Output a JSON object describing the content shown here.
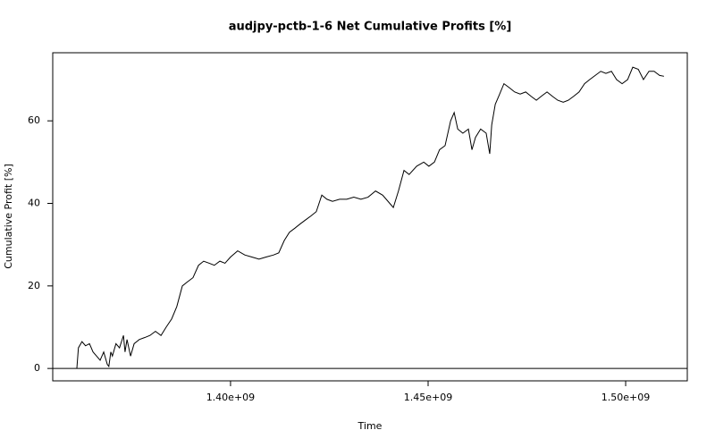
{
  "chart_data": {
    "type": "line",
    "title": "audjpy-pctb-1-6 Net Cumulative Profits [%]",
    "x_label": "Time",
    "y_label": "Cumulative Profit [%]",
    "xlim": [
      1355000000,
      1515600000
    ],
    "xticks": [
      {
        "value": 1400000000,
        "label": "1.40e+09"
      },
      {
        "value": 1450000000,
        "label": "1.45e+09"
      },
      {
        "value": 1500000000,
        "label": "1.50e+09"
      }
    ],
    "ylim": [
      -3,
      76.5
    ],
    "yticks": [
      0,
      20,
      40,
      60
    ],
    "hline": 0,
    "color": "#000000",
    "x": [
      1361100000,
      1361500000,
      1362400000,
      1363300000,
      1364300000,
      1365200000,
      1366100000,
      1367000000,
      1367900000,
      1368800000,
      1369200000,
      1369700000,
      1370100000,
      1371000000,
      1371900000,
      1372900000,
      1373300000,
      1373800000,
      1374700000,
      1375600000,
      1376900000,
      1378300000,
      1379600000,
      1381000000,
      1382400000,
      1383700000,
      1385100000,
      1386400000,
      1387800000,
      1389100000,
      1390500000,
      1391900000,
      1393200000,
      1394600000,
      1395900000,
      1397300000,
      1398600000,
      1400000000,
      1401800000,
      1403600000,
      1405400000,
      1407200000,
      1409000000,
      1410900000,
      1412200000,
      1413600000,
      1414900000,
      1416300000,
      1417600000,
      1419000000,
      1420400000,
      1421700000,
      1423100000,
      1424400000,
      1425800000,
      1427600000,
      1429400000,
      1431200000,
      1433000000,
      1434800000,
      1436700000,
      1438500000,
      1440300000,
      1441200000,
      1442500000,
      1443900000,
      1445200000,
      1447100000,
      1448900000,
      1450200000,
      1451600000,
      1452900000,
      1454300000,
      1455700000,
      1456600000,
      1457500000,
      1458800000,
      1460200000,
      1461100000,
      1462000000,
      1463300000,
      1464700000,
      1465600000,
      1466100000,
      1467000000,
      1467900000,
      1469200000,
      1470600000,
      1471900000,
      1473300000,
      1474700000,
      1476000000,
      1477400000,
      1478700000,
      1480100000,
      1481400000,
      1482800000,
      1484200000,
      1485500000,
      1486900000,
      1488200000,
      1489600000,
      1490900000,
      1492300000,
      1493700000,
      1495000000,
      1496400000,
      1497700000,
      1499100000,
      1500500000,
      1501800000,
      1503200000,
      1504500000,
      1505900000,
      1507200000,
      1508600000,
      1509700000
    ],
    "values": [
      0,
      5,
      6.5,
      5.5,
      6,
      4,
      3,
      2,
      4,
      1,
      0.5,
      4,
      3,
      6,
      5,
      8,
      4,
      7,
      3,
      6,
      7,
      7.5,
      8,
      9,
      8,
      10,
      12,
      15,
      20,
      21,
      22,
      25,
      26,
      25.5,
      25,
      26,
      25.5,
      27,
      28.5,
      27.5,
      27,
      26.5,
      27,
      27.5,
      28,
      31,
      33,
      34,
      35,
      36,
      37,
      38,
      42,
      41,
      40.5,
      41,
      41,
      41.5,
      41,
      41.5,
      43,
      42,
      40,
      39,
      43,
      48,
      47,
      49,
      50,
      49,
      50,
      53,
      54,
      60,
      62,
      58,
      57,
      58,
      53,
      56,
      58,
      57,
      52,
      59,
      64,
      66,
      69,
      68,
      67,
      66.5,
      67,
      66,
      65,
      66,
      67,
      66,
      65,
      64.5,
      65,
      66,
      67,
      69,
      70,
      71,
      72,
      71.5,
      72,
      70,
      69,
      70,
      73,
      72.5,
      70,
      72,
      72,
      71,
      70.8
    ]
  }
}
